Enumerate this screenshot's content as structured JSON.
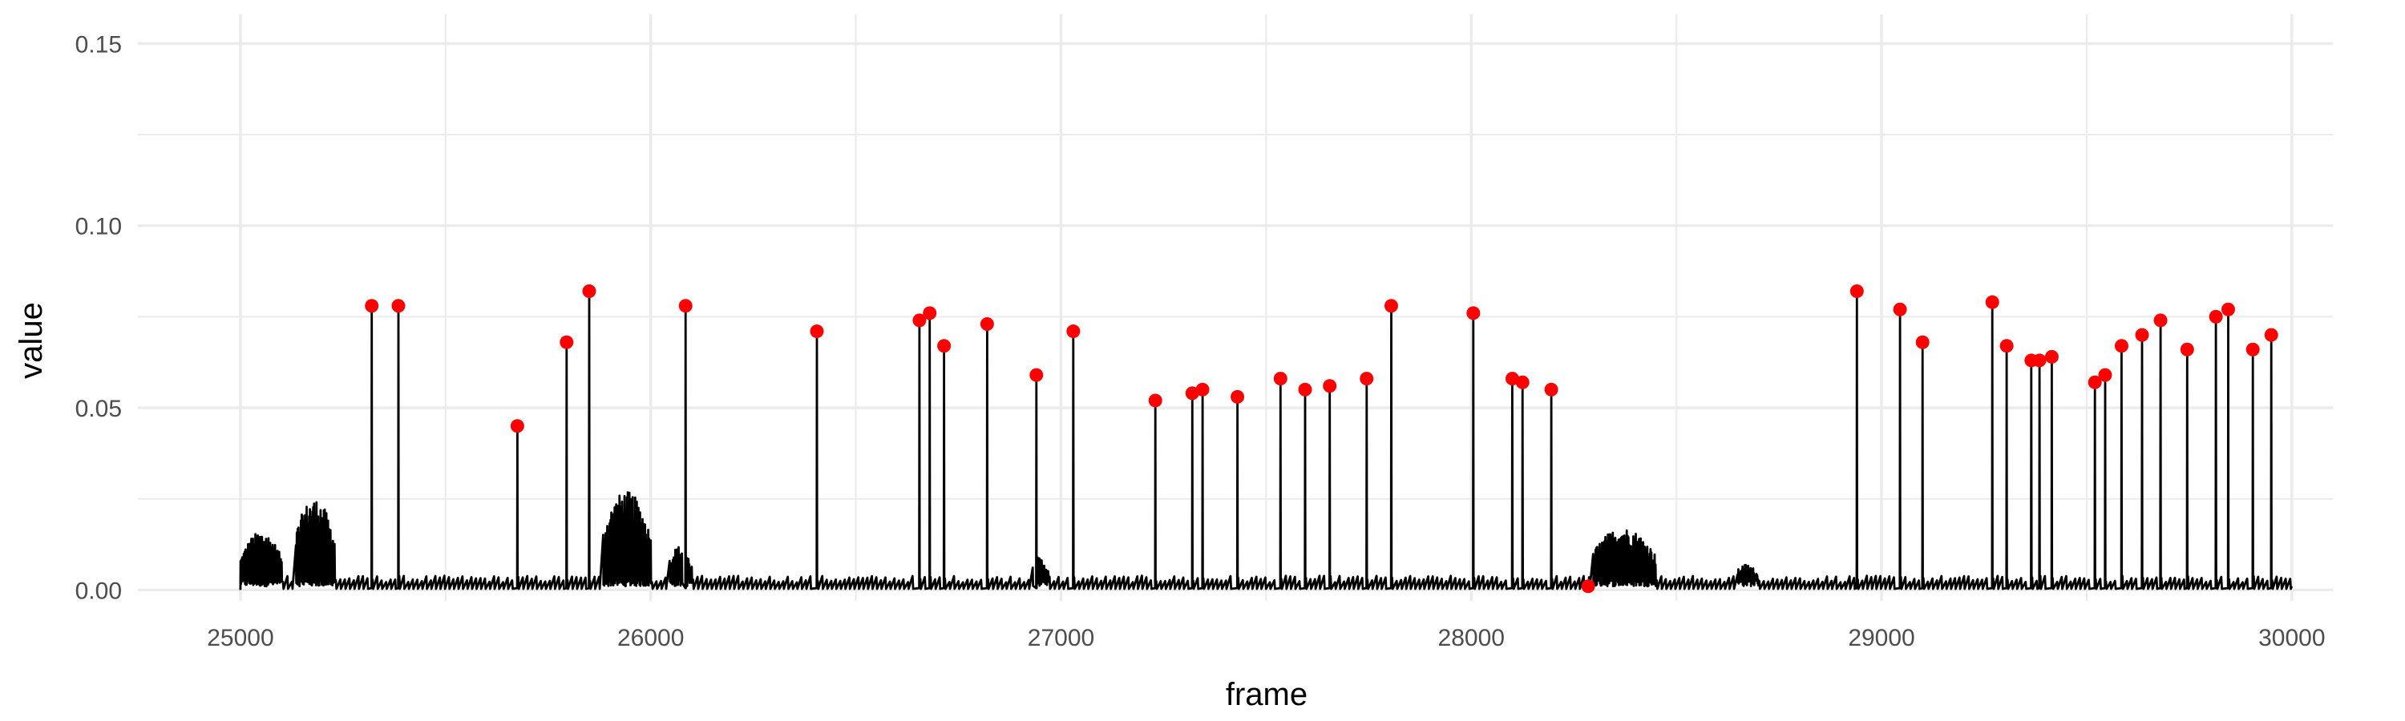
{
  "chart_data": {
    "type": "line",
    "title": "",
    "xlabel": "frame",
    "ylabel": "value",
    "xlim": [
      24750,
      30100
    ],
    "ylim": [
      -0.003,
      0.158
    ],
    "x_ticks": [
      25000,
      26000,
      27000,
      28000,
      29000,
      30000
    ],
    "x_tick_labels": [
      "25000",
      "26000",
      "27000",
      "28000",
      "29000",
      "30000"
    ],
    "y_ticks": [
      0.0,
      0.05,
      0.1,
      0.15
    ],
    "y_tick_labels": [
      "0.00",
      "0.05",
      "0.10",
      "0.15"
    ],
    "grid": true,
    "legend": "none",
    "colors": {
      "line": "#000000",
      "peaks": "#ff0000",
      "grid": "#ebebeb"
    },
    "baseline": {
      "x_start": 25000,
      "x_end": 30000,
      "typical_value": 0.003
    },
    "bursts": [
      {
        "x_start": 25000,
        "x_end": 25100,
        "max": 0.016
      },
      {
        "x_start": 25130,
        "x_end": 25230,
        "max": 0.025
      },
      {
        "x_start": 25880,
        "x_end": 26000,
        "max": 0.027
      },
      {
        "x_start": 26040,
        "x_end": 26100,
        "max": 0.012
      },
      {
        "x_start": 26920,
        "x_end": 26970,
        "max": 0.009
      },
      {
        "x_start": 28290,
        "x_end": 28450,
        "max": 0.017
      },
      {
        "x_start": 28640,
        "x_end": 28700,
        "max": 0.007
      }
    ],
    "series": [
      {
        "name": "peaks",
        "x": [
          25320,
          25385,
          25675,
          25795,
          25850,
          26085,
          26405,
          26655,
          26680,
          26715,
          26820,
          26940,
          27030,
          27230,
          27320,
          27345,
          27430,
          27535,
          27595,
          27655,
          27745,
          27805,
          28005,
          28100,
          28125,
          28195,
          28285,
          28940,
          29045,
          29100,
          29270,
          29305,
          29365,
          29385,
          29415,
          29520,
          29545,
          29585,
          29635,
          29680,
          29745,
          29815,
          29845,
          29905,
          29950
        ],
        "values": [
          0.078,
          0.078,
          0.045,
          0.068,
          0.082,
          0.078,
          0.071,
          0.074,
          0.076,
          0.067,
          0.073,
          0.059,
          0.071,
          0.052,
          0.054,
          0.055,
          0.053,
          0.058,
          0.055,
          0.056,
          0.058,
          0.078,
          0.076,
          0.058,
          0.057,
          0.055,
          0.001,
          0.082,
          0.077,
          0.068,
          0.079,
          0.067,
          0.063,
          0.063,
          0.064,
          0.057,
          0.059,
          0.067,
          0.07,
          0.074,
          0.066,
          0.075,
          0.077,
          0.066,
          0.07
        ]
      }
    ]
  }
}
